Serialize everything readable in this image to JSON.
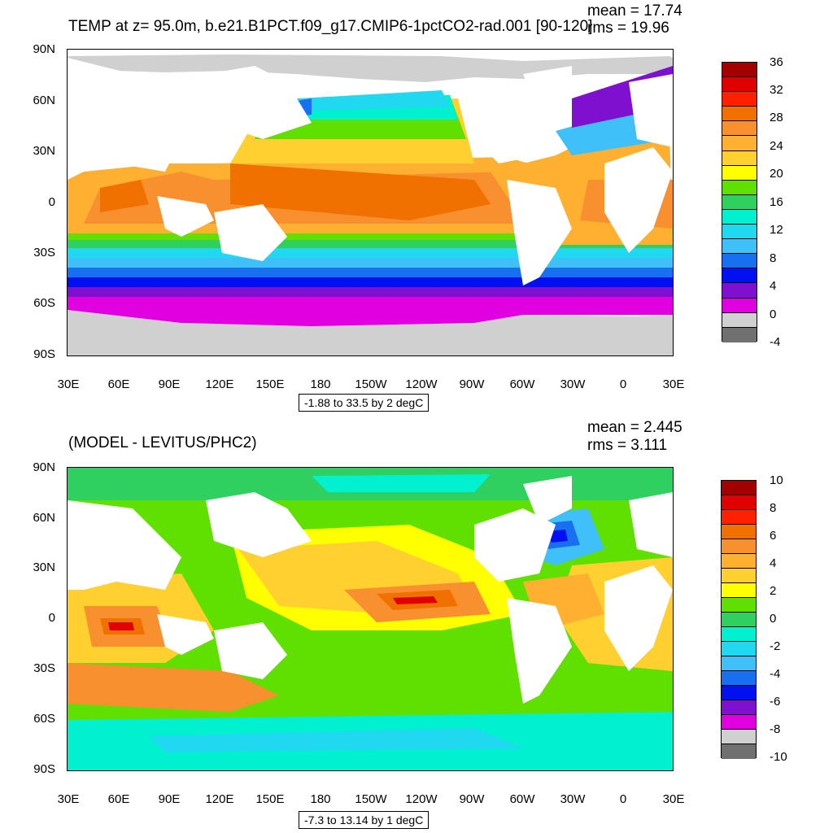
{
  "top": {
    "title": "TEMP at z=  95.0m, b.e21.B1PCT.f09_g17.CMIP6-1pctCO2-rad.001 [90-120]",
    "mean": "mean = 17.74",
    "rms": "rms = 19.96",
    "info": "-1.88 to 33.5 by 2 degC",
    "colorbar_labels": [
      "36",
      "32",
      "28",
      "24",
      "20",
      "16",
      "12",
      "8",
      "4",
      "0",
      "-4"
    ],
    "colors": [
      "#a50000",
      "#e00000",
      "#ff2000",
      "#f07000",
      "#f89030",
      "#ffb030",
      "#ffd030",
      "#ffff00",
      "#60e000",
      "#30d060",
      "#00f0d0",
      "#20d8f0",
      "#40c0f8",
      "#1870f0",
      "#0010f0",
      "#8010d0",
      "#e000e0",
      "#d0d0d0",
      "#707070"
    ]
  },
  "bottom": {
    "title": "(MODEL - LEVITUS/PHC2)",
    "mean": "mean = 2.445",
    "rms": "rms = 3.111",
    "info": "-7.3 to 13.14 by 1 degC",
    "colorbar_labels": [
      "10",
      "8",
      "6",
      "4",
      "2",
      "0",
      "-2",
      "-4",
      "-6",
      "-8",
      "-10"
    ],
    "colors": [
      "#a50000",
      "#e00000",
      "#ff2000",
      "#f07000",
      "#f89030",
      "#ffb030",
      "#ffd030",
      "#ffff00",
      "#60e000",
      "#30d060",
      "#00f0d0",
      "#20d8f0",
      "#40c0f8",
      "#1870f0",
      "#0010f0",
      "#8010d0",
      "#e000e0",
      "#d0d0d0",
      "#707070"
    ]
  },
  "axes": {
    "lat_labels": [
      "90N",
      "60N",
      "30N",
      "0",
      "30S",
      "60S",
      "90S"
    ],
    "lon_labels": [
      "30E",
      "60E",
      "90E",
      "120E",
      "150E",
      "180",
      "150W",
      "120W",
      "90W",
      "60W",
      "30W",
      "0",
      "30E"
    ]
  }
}
